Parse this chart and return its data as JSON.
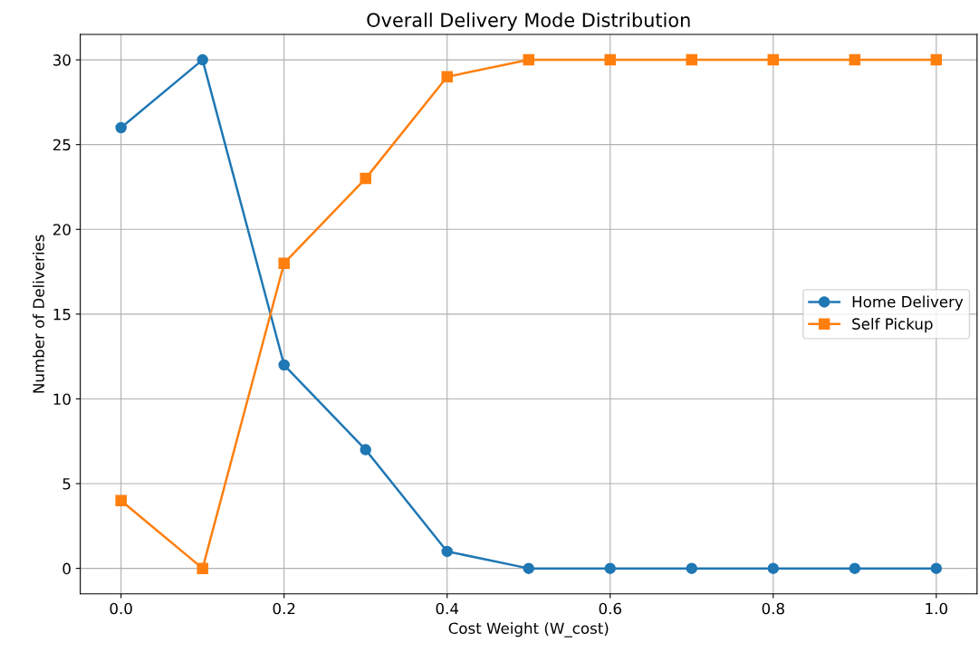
{
  "chart_data": {
    "type": "line",
    "title": "Overall Delivery Mode Distribution",
    "xlabel": "Cost Weight (W_cost)",
    "ylabel": "Number of Deliveries",
    "x": [
      0.0,
      0.1,
      0.2,
      0.3,
      0.4,
      0.5,
      0.6,
      0.7,
      0.8,
      0.9,
      1.0
    ],
    "series": [
      {
        "name": "Home Delivery",
        "color": "#1f77b4",
        "marker": "circle",
        "values": [
          26,
          30,
          12,
          7,
          1,
          0,
          0,
          0,
          0,
          0,
          0
        ]
      },
      {
        "name": "Self Pickup",
        "color": "#ff7f0e",
        "marker": "square",
        "values": [
          4,
          0,
          18,
          23,
          29,
          30,
          30,
          30,
          30,
          30,
          30
        ]
      }
    ],
    "xlim": [
      -0.05,
      1.05
    ],
    "xticks": [
      {
        "value": 0,
        "label": "0.0"
      },
      {
        "value": 0.2,
        "label": "0.2"
      },
      {
        "value": 0.4,
        "label": "0.4"
      },
      {
        "value": 0.6,
        "label": "0.6"
      },
      {
        "value": 0.8,
        "label": "0.8"
      },
      {
        "value": 1,
        "label": "1.0"
      }
    ],
    "ylim": [
      -1.5,
      31.5
    ],
    "yticks": [
      0,
      5,
      10,
      15,
      20,
      25,
      30
    ],
    "grid": true,
    "legend": "center right",
    "line_style": "solid"
  }
}
